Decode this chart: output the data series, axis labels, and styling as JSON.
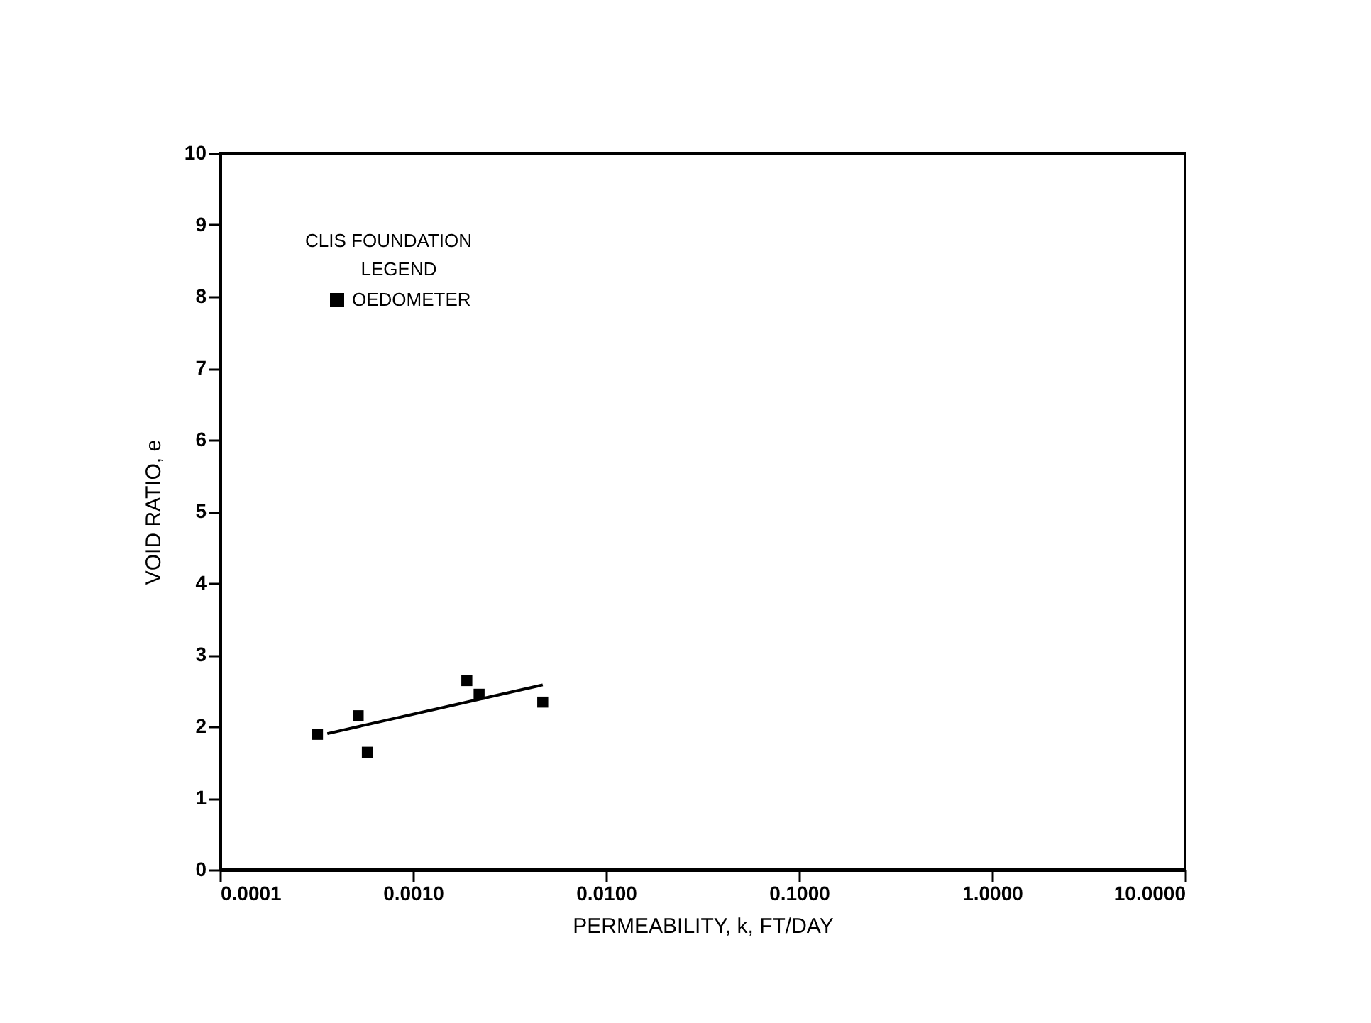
{
  "chart_data": {
    "type": "scatter",
    "xlabel": "PERMEABILITY, k, FT/DAY",
    "ylabel": "VOID RATIO, e",
    "legend_title": "LEGEND",
    "annotations": [
      "CLIS FOUNDATION"
    ],
    "log": "x",
    "xlim": [
      0.0001,
      10
    ],
    "xticks": [
      {
        "value": 0.0001,
        "label": "0.0001"
      },
      {
        "value": 0.001,
        "label": "0.0010"
      },
      {
        "value": 0.01,
        "label": "0.0100"
      },
      {
        "value": 0.1,
        "label": "0.1000"
      },
      {
        "value": 1,
        "label": "1.0000"
      },
      {
        "value": 10,
        "label": "10.0000"
      }
    ],
    "ylim": [
      0,
      10
    ],
    "yticks": [
      0,
      1,
      2,
      3,
      4,
      5,
      6,
      7,
      8,
      9,
      10
    ],
    "grid": false,
    "legend": "top left",
    "series": [
      {
        "name": "OEDOMETER",
        "marker": "square",
        "color": "#000000",
        "x": [
          0.00032,
          0.00052,
          0.00058,
          0.0019,
          0.0022,
          0.0047
        ],
        "values": [
          1.89,
          2.15,
          1.64,
          2.64,
          2.45,
          2.34
        ]
      },
      {
        "type": "line",
        "color": "#000000",
        "line_style": "solid",
        "marker": "none",
        "x": [
          0.00036,
          0.0047
        ],
        "values": [
          1.9,
          2.58
        ]
      }
    ]
  }
}
